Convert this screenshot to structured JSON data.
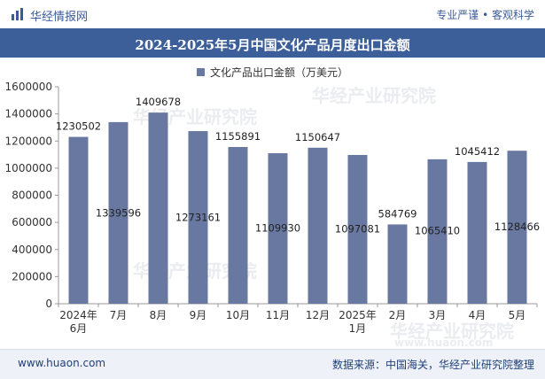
{
  "header": {
    "brand": "华经情报网",
    "tagline": "专业严谨 • 客观科学"
  },
  "chart_data": {
    "type": "bar",
    "title": "2024-2025年5月中国文化产品月度出口金额",
    "categories": [
      "2024年\n6月",
      "7月",
      "8月",
      "9月",
      "10月",
      "11月",
      "12月",
      "2025年\n1月",
      "2月",
      "3月",
      "4月",
      "5月"
    ],
    "series": [
      {
        "name": "文化产品出口金额（万美元）",
        "values": [
          1230502,
          1339596,
          1409678,
          1273161,
          1155891,
          1109930,
          1150647,
          1097081,
          584769,
          1065410,
          1045412,
          1128466
        ]
      }
    ],
    "data_labels": [
      "1230502",
      "1339596",
      "1409678",
      "1273161",
      "1155891",
      "1109930",
      "1150647",
      "1097081",
      "584769",
      "1065410",
      "1045412",
      "1128466"
    ],
    "label_placement": [
      "above",
      "inside",
      "above",
      "inside",
      "above",
      "inside",
      "above",
      "inside",
      "above",
      "inside",
      "above",
      "inside"
    ],
    "ylim": [
      0,
      1600000
    ],
    "yticks": [
      "0",
      "200000",
      "400000",
      "600000",
      "800000",
      "1000000",
      "1200000",
      "1400000",
      "1600000"
    ],
    "bar_color": "#6878a0",
    "legend_position": "top",
    "grid": false
  },
  "footer": {
    "url": "www.huaon.com",
    "source": "数据来源：中国海关，华经产业研究院整理"
  },
  "watermarks": [
    "华经产业研究院",
    "www.huaon.com"
  ]
}
